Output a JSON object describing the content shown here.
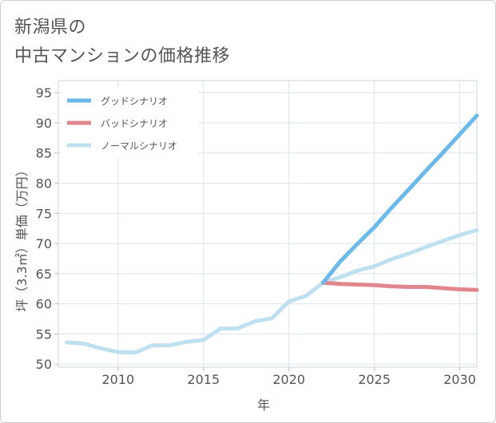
{
  "title_lines": [
    "新潟県の",
    "中古マンションの価格推移"
  ],
  "chart_data": {
    "type": "line",
    "title": "新潟県の中古マンションの価格推移",
    "xlabel": "年",
    "ylabel": "坪（3.3㎡）単価（万円）",
    "xlim": [
      2006.5,
      2031
    ],
    "ylim": [
      49.5,
      97
    ],
    "xticks": [
      2010,
      2015,
      2020,
      2025,
      2030
    ],
    "yticks": [
      50,
      55,
      60,
      65,
      70,
      75,
      80,
      85,
      90,
      95
    ],
    "legend_position": "top-left",
    "series": [
      {
        "name": "グッドシナリオ",
        "color": "#6ab9ea",
        "x": [
          2022,
          2023,
          2024,
          2025,
          2026,
          2027,
          2028,
          2029,
          2030,
          2031
        ],
        "y": [
          63.5,
          67.0,
          69.9,
          72.7,
          75.9,
          78.9,
          82.0,
          85.0,
          88.1,
          91.2
        ]
      },
      {
        "name": "バッドシナリオ",
        "color": "#e0868c",
        "x": [
          2022,
          2023,
          2024,
          2025,
          2026,
          2027,
          2028,
          2029,
          2030,
          2031
        ],
        "y": [
          63.5,
          63.3,
          63.2,
          63.1,
          62.9,
          62.8,
          62.8,
          62.6,
          62.4,
          62.3
        ]
      },
      {
        "name": "ノーマルシナリオ",
        "color": "#bfe0ee",
        "x": [
          2007,
          2008,
          2009,
          2010,
          2011,
          2012,
          2013,
          2014,
          2015,
          2016,
          2017,
          2018,
          2019,
          2020,
          2021,
          2022,
          2023,
          2024,
          2025,
          2026,
          2027,
          2028,
          2029,
          2030,
          2031
        ],
        "y": [
          53.6,
          53.4,
          52.6,
          52.0,
          51.9,
          53.1,
          53.1,
          53.7,
          54.0,
          55.9,
          55.9,
          57.1,
          57.6,
          60.4,
          61.3,
          63.5,
          64.4,
          65.5,
          66.2,
          67.4,
          68.3,
          69.4,
          70.4,
          71.4,
          72.2
        ]
      }
    ]
  }
}
